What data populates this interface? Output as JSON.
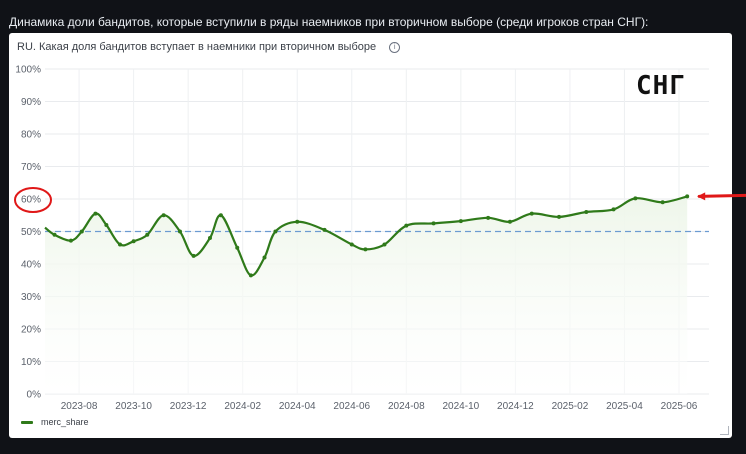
{
  "header": {
    "text": "Динамика доли бандитов, которые вступили в ряды наемников при вторичном выборе (среди игроков стран СНГ):"
  },
  "panel": {
    "title": "RU. Какая доля бандитов вступает в наемники при вторичном выборе",
    "info_icon": "i",
    "watermark": "СНГ"
  },
  "legend": {
    "label": "merc_share"
  },
  "colors": {
    "line": "#2f7a1a",
    "fill": "#eef6ea",
    "reference": "#6b9bd1",
    "annotation": "#e01818"
  },
  "chart_data": {
    "type": "line",
    "title": "RU. Какая доля бандитов вступает в наемники при вторичном выборе",
    "xlabel": "",
    "ylabel": "",
    "ylim": [
      0,
      100
    ],
    "xlim_months": [
      -1.25,
      23.1
    ],
    "grid": true,
    "legend_position": "bottom-left",
    "y_ticks": [
      "0%",
      "10%",
      "20%",
      "30%",
      "40%",
      "50%",
      "60%",
      "70%",
      "80%",
      "90%",
      "100%"
    ],
    "x_ticks": [
      {
        "label": "2023-08",
        "month": 0
      },
      {
        "label": "2023-10",
        "month": 2
      },
      {
        "label": "2023-12",
        "month": 4
      },
      {
        "label": "2024-02",
        "month": 6
      },
      {
        "label": "2024-04",
        "month": 8
      },
      {
        "label": "2024-06",
        "month": 10
      },
      {
        "label": "2024-08",
        "month": 12
      },
      {
        "label": "2024-10",
        "month": 14
      },
      {
        "label": "2024-12",
        "month": 16
      },
      {
        "label": "2025-02",
        "month": 18
      },
      {
        "label": "2025-04",
        "month": 20
      },
      {
        "label": "2025-06",
        "month": 22
      }
    ],
    "reference_line": 50,
    "series": [
      {
        "name": "merc_share",
        "points": [
          {
            "month": -1.25,
            "value": 51.2
          },
          {
            "month": -0.9,
            "value": 49
          },
          {
            "month": -0.3,
            "value": 47.2
          },
          {
            "month": 0.1,
            "value": 50
          },
          {
            "month": 0.6,
            "value": 55.5
          },
          {
            "month": 1.0,
            "value": 52
          },
          {
            "month": 1.5,
            "value": 46
          },
          {
            "month": 2.0,
            "value": 47
          },
          {
            "month": 2.5,
            "value": 49
          },
          {
            "month": 3.1,
            "value": 55
          },
          {
            "month": 3.7,
            "value": 50
          },
          {
            "month": 4.2,
            "value": 42.5
          },
          {
            "month": 4.8,
            "value": 48
          },
          {
            "month": 5.2,
            "value": 55
          },
          {
            "month": 5.8,
            "value": 45
          },
          {
            "month": 6.3,
            "value": 36.5
          },
          {
            "month": 6.8,
            "value": 42
          },
          {
            "month": 7.2,
            "value": 50
          },
          {
            "month": 8.0,
            "value": 53
          },
          {
            "month": 9.0,
            "value": 50.5
          },
          {
            "month": 10.0,
            "value": 46
          },
          {
            "month": 10.5,
            "value": 44.5
          },
          {
            "month": 11.2,
            "value": 46
          },
          {
            "month": 12.0,
            "value": 51.8
          },
          {
            "month": 13.0,
            "value": 52.5
          },
          {
            "month": 14.0,
            "value": 53.2
          },
          {
            "month": 15.0,
            "value": 54.2
          },
          {
            "month": 15.8,
            "value": 53
          },
          {
            "month": 16.6,
            "value": 55.5
          },
          {
            "month": 17.6,
            "value": 54.5
          },
          {
            "month": 18.6,
            "value": 56
          },
          {
            "month": 19.6,
            "value": 56.8
          },
          {
            "month": 20.4,
            "value": 60.2
          },
          {
            "month": 21.4,
            "value": 59
          },
          {
            "month": 22.3,
            "value": 60.8
          }
        ]
      }
    ],
    "annotations": [
      {
        "type": "circle",
        "target_tick": "60%",
        "color": "#e01818"
      },
      {
        "type": "arrow",
        "target_value": 60.8,
        "color": "#e01818"
      }
    ]
  }
}
